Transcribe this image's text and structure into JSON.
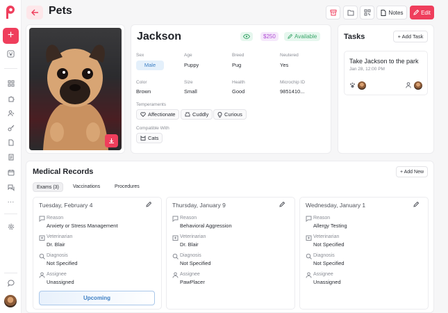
{
  "header": {
    "title": "Pets",
    "notes_label": "Notes",
    "edit_label": "Edit"
  },
  "sidebar": {
    "icons": [
      "plus-icon",
      "paw-badge-icon",
      "grid-icon",
      "puzzle-icon",
      "users-icon",
      "key-icon",
      "document-icon",
      "document-list-icon",
      "calendar-icon",
      "chat-icon",
      "more-icon",
      "gear-icon",
      "message-icon"
    ]
  },
  "pet": {
    "name": "Jackson",
    "price": "$250",
    "status": "Available",
    "fields": {
      "sex_label": "Sex",
      "sex": "Male",
      "age_label": "Age",
      "age": "Puppy",
      "breed_label": "Breed",
      "breed": "Pug",
      "neutered_label": "Neutered",
      "neutered": "Yes",
      "color_label": "Color",
      "color": "Brown",
      "size_label": "Size",
      "size": "Small",
      "health_label": "Health",
      "health": "Good",
      "microchip_label": "Microchip ID",
      "microchip": "9851410..."
    },
    "temperaments_label": "Temperaments",
    "temperaments": [
      "Affectionate",
      "Cuddly",
      "Curious"
    ],
    "compatible_label": "Compatible With",
    "compatible": [
      "Cats"
    ]
  },
  "tasks": {
    "title": "Tasks",
    "add_label": "+ Add Task",
    "items": [
      {
        "title": "Take Jackson to the park",
        "date": "Jan 28, 12:00 PM"
      }
    ]
  },
  "medical": {
    "title": "Medical Records",
    "add_label": "+ Add New",
    "tabs": [
      "Exams (3)",
      "Vaccinations",
      "Procedures"
    ],
    "labels": {
      "reason": "Reason",
      "vet": "Veterinarian",
      "diagnosis": "Diagnosis",
      "assignee": "Assignee"
    },
    "records": [
      {
        "date": "Tuesday, February 4",
        "reason": "Anxiety or Stress Management",
        "vet": "Dr. Blair",
        "diagnosis": "Not Specified",
        "assignee": "Unassigned"
      },
      {
        "date": "Thursday, January 9",
        "reason": "Behavioral Aggression",
        "vet": "Dr. Blair",
        "diagnosis": "Not Specified",
        "assignee": "PawPlacer"
      },
      {
        "date": "Wednesday, January 1",
        "reason": "Allergy Testing",
        "vet": "Not Specified",
        "diagnosis": "Not Specified",
        "assignee": "Unassigned"
      }
    ],
    "upcoming_label": "Upcoming"
  },
  "colors": {
    "accent": "#ef3e5c",
    "available": "#3aa66a",
    "price": "#b04fd4",
    "sex": "#3d7fc4"
  }
}
